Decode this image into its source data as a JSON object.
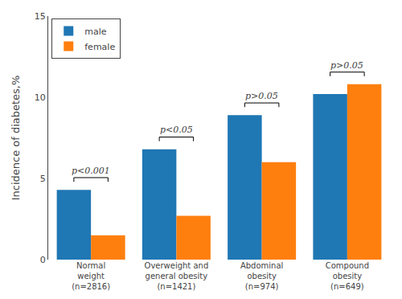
{
  "chart_data": {
    "type": "bar",
    "categories": [
      "Normal\nweight\n(n=2816)",
      "Overweight and\ngeneral obesity\n(n=1421)",
      "Abdominal\nobesity\n(n=974)",
      "Compound\nobesity\n(n=649)"
    ],
    "series": [
      {
        "name": "male",
        "values": [
          4.3,
          6.8,
          8.9,
          10.2
        ]
      },
      {
        "name": "female",
        "values": [
          1.5,
          2.7,
          6.0,
          10.8
        ]
      }
    ],
    "y_label": "Incidence of diabetes,%",
    "ylim": [
      0,
      15
    ],
    "yticks": [
      0,
      5,
      10,
      15
    ],
    "annotations": [
      "p<0.001",
      "p<0.05",
      "p>0.05",
      "p>0.05"
    ],
    "legend": "upper left",
    "grid": false
  }
}
